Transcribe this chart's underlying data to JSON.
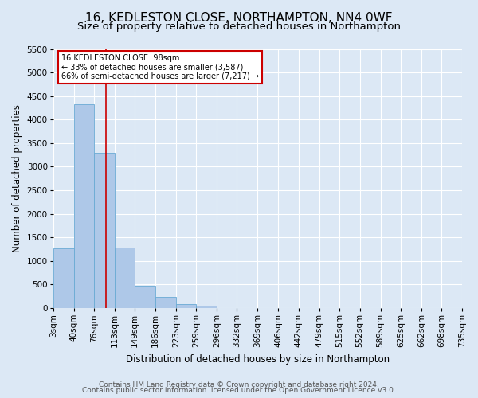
{
  "title": "16, KEDLESTON CLOSE, NORTHAMPTON, NN4 0WF",
  "subtitle": "Size of property relative to detached houses in Northampton",
  "xlabel": "Distribution of detached houses by size in Northampton",
  "ylabel": "Number of detached properties",
  "footer_line1": "Contains HM Land Registry data © Crown copyright and database right 2024.",
  "footer_line2": "Contains public sector information licensed under the Open Government Licence v3.0.",
  "bin_labels": [
    "3sqm",
    "40sqm",
    "76sqm",
    "113sqm",
    "149sqm",
    "186sqm",
    "223sqm",
    "259sqm",
    "296sqm",
    "332sqm",
    "369sqm",
    "406sqm",
    "442sqm",
    "479sqm",
    "515sqm",
    "552sqm",
    "589sqm",
    "625sqm",
    "662sqm",
    "698sqm",
    "735sqm"
  ],
  "bar_values": [
    1270,
    4330,
    3290,
    1290,
    480,
    230,
    90,
    50,
    0,
    0,
    0,
    0,
    0,
    0,
    0,
    0,
    0,
    0,
    0,
    0
  ],
  "bin_edges": [
    3,
    40,
    76,
    113,
    149,
    186,
    223,
    259,
    296,
    332,
    369,
    406,
    442,
    479,
    515,
    552,
    589,
    625,
    662,
    698,
    735
  ],
  "bar_color": "#aec8e8",
  "bar_edge_color": "#6aaad4",
  "property_size": 98,
  "vline_color": "#cc0000",
  "annotation_text_line1": "16 KEDLESTON CLOSE: 98sqm",
  "annotation_text_line2": "← 33% of detached houses are smaller (3,587)",
  "annotation_text_line3": "66% of semi-detached houses are larger (7,217) →",
  "annotation_box_color": "#ffffff",
  "annotation_box_edge_color": "#cc0000",
  "ylim": [
    0,
    5500
  ],
  "yticks": [
    0,
    500,
    1000,
    1500,
    2000,
    2500,
    3000,
    3500,
    4000,
    4500,
    5000,
    5500
  ],
  "bg_color": "#dce8f5",
  "plot_bg_color": "#dce8f5",
  "grid_color": "#ffffff",
  "title_fontsize": 11,
  "subtitle_fontsize": 9.5,
  "axis_label_fontsize": 8.5,
  "tick_fontsize": 7.5,
  "footer_fontsize": 6.5
}
